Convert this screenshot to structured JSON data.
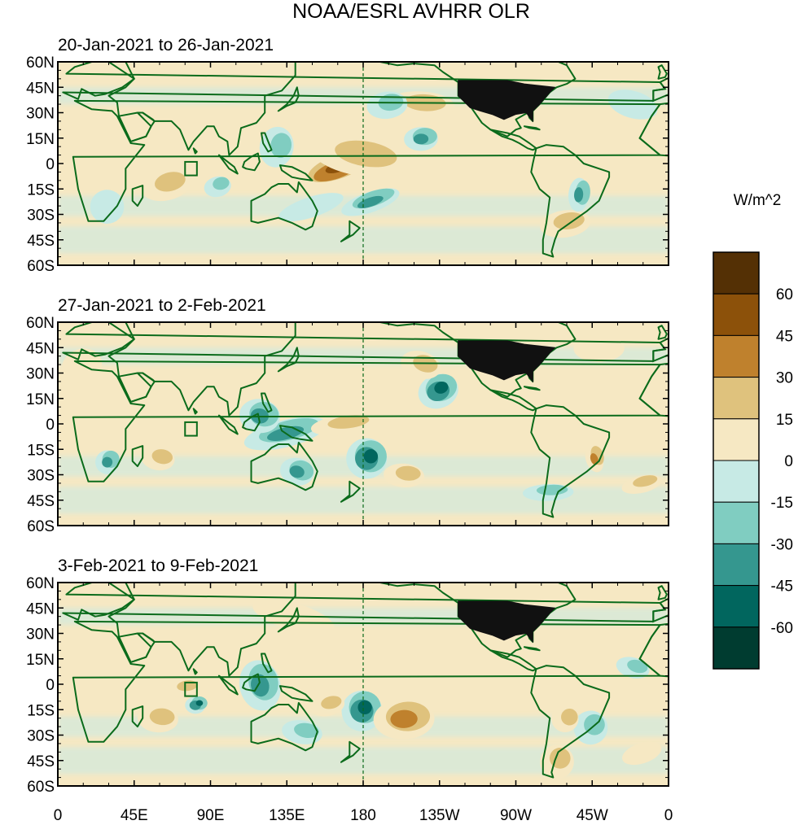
{
  "chart_data": {
    "type": "heatmap",
    "title": "NOAA/ESRL AVHRR OLR",
    "units": "W/m^2",
    "colorbar": {
      "levels": [
        60,
        45,
        30,
        15,
        0,
        -15,
        -30,
        -45,
        -60
      ],
      "colors": [
        "#543005",
        "#8c510a",
        "#bf812d",
        "#dfc27d",
        "#f6e8c3",
        "#c7eae5",
        "#80cdc1",
        "#35978f",
        "#01665e",
        "#003c30"
      ],
      "tick_labels": [
        "60",
        "45",
        "30",
        "15",
        "0",
        "-15",
        "-30",
        "-45",
        "-60"
      ]
    },
    "lat_ticks": [
      "60N",
      "45N",
      "30N",
      "15N",
      "0",
      "15S",
      "30S",
      "45S",
      "60S"
    ],
    "lat_values": [
      60,
      45,
      30,
      15,
      0,
      -15,
      -30,
      -45,
      -60
    ],
    "lon_ticks": [
      "0",
      "45E",
      "90E",
      "135E",
      "180",
      "135W",
      "90W",
      "45W",
      "0"
    ],
    "lon_values": [
      0,
      45,
      90,
      135,
      180,
      225,
      270,
      315,
      360
    ],
    "xlim": [
      0,
      360
    ],
    "ylim": [
      -60,
      60
    ],
    "panels": [
      {
        "title": "20-Jan-2021 to 26-Jan-2021",
        "anomalies": [
          {
            "lon": 165,
            "lat": -3,
            "value": 65,
            "rx": 25,
            "ry": 9
          },
          {
            "lon": 215,
            "lat": 35,
            "value": 35,
            "rx": 20,
            "ry": 8
          },
          {
            "lon": 65,
            "lat": -12,
            "value": 30,
            "rx": 15,
            "ry": 9
          },
          {
            "lon": 180,
            "lat": 5,
            "value": 28,
            "rx": 30,
            "ry": 12
          },
          {
            "lon": 300,
            "lat": -35,
            "value": 25,
            "rx": 15,
            "ry": 8
          },
          {
            "lon": 85,
            "lat": 15,
            "value": 20,
            "rx": 20,
            "ry": 12
          },
          {
            "lon": 215,
            "lat": 15,
            "value": -50,
            "rx": 10,
            "ry": 7
          },
          {
            "lon": 185,
            "lat": -22,
            "value": -50,
            "rx": 18,
            "ry": 6
          },
          {
            "lon": 308,
            "lat": -18,
            "value": -45,
            "rx": 6,
            "ry": 10
          },
          {
            "lon": 95,
            "lat": -13,
            "value": -35,
            "rx": 8,
            "ry": 6
          },
          {
            "lon": 130,
            "lat": 10,
            "value": -30,
            "rx": 10,
            "ry": 12
          },
          {
            "lon": 195,
            "lat": 35,
            "value": -25,
            "rx": 12,
            "ry": 8
          },
          {
            "lon": 340,
            "lat": 35,
            "value": -20,
            "rx": 15,
            "ry": 8
          },
          {
            "lon": 30,
            "lat": -25,
            "value": -20,
            "rx": 10,
            "ry": 10
          },
          {
            "lon": 150,
            "lat": -25,
            "value": -20,
            "rx": 20,
            "ry": 6
          }
        ]
      },
      {
        "title": "27-Jan-2021 to 2-Feb-2021",
        "anomalies": [
          {
            "lon": 225,
            "lat": 20,
            "value": -60,
            "rx": 12,
            "ry": 10
          },
          {
            "lon": 183,
            "lat": -20,
            "value": -60,
            "rx": 12,
            "ry": 12
          },
          {
            "lon": 135,
            "lat": -5,
            "value": -45,
            "rx": 25,
            "ry": 8
          },
          {
            "lon": 120,
            "lat": 5,
            "value": -40,
            "rx": 12,
            "ry": 10
          },
          {
            "lon": 30,
            "lat": -22,
            "value": -50,
            "rx": 7,
            "ry": 7
          },
          {
            "lon": 142,
            "lat": -28,
            "value": -40,
            "rx": 10,
            "ry": 8
          },
          {
            "lon": 290,
            "lat": -40,
            "value": -35,
            "rx": 15,
            "ry": 5
          },
          {
            "lon": 317,
            "lat": -20,
            "value": 40,
            "rx": 5,
            "ry": 8
          },
          {
            "lon": 205,
            "lat": -30,
            "value": 30,
            "rx": 12,
            "ry": 7
          },
          {
            "lon": 345,
            "lat": -35,
            "value": 35,
            "rx": 12,
            "ry": 5
          },
          {
            "lon": 60,
            "lat": -20,
            "value": 30,
            "rx": 10,
            "ry": 7
          },
          {
            "lon": 170,
            "lat": 0,
            "value": 25,
            "rx": 20,
            "ry": 6
          },
          {
            "lon": 215,
            "lat": 35,
            "value": 25,
            "rx": 12,
            "ry": 8
          },
          {
            "lon": 320,
            "lat": 45,
            "value": 20,
            "rx": 15,
            "ry": 8
          },
          {
            "lon": 15,
            "lat": 35,
            "value": 20,
            "rx": 12,
            "ry": 10
          }
        ]
      },
      {
        "title": "3-Feb-2021 to 9-Feb-2021",
        "anomalies": [
          {
            "lon": 180,
            "lat": -15,
            "value": -60,
            "rx": 12,
            "ry": 12
          },
          {
            "lon": 82,
            "lat": -12,
            "value": -55,
            "rx": 6,
            "ry": 5
          },
          {
            "lon": 120,
            "lat": 0,
            "value": -40,
            "rx": 12,
            "ry": 15
          },
          {
            "lon": 145,
            "lat": -28,
            "value": -30,
            "rx": 12,
            "ry": 7
          },
          {
            "lon": 315,
            "lat": -25,
            "value": -30,
            "rx": 10,
            "ry": 10
          },
          {
            "lon": 340,
            "lat": 10,
            "value": -35,
            "rx": 10,
            "ry": 6
          },
          {
            "lon": 205,
            "lat": -20,
            "value": 40,
            "rx": 18,
            "ry": 12
          },
          {
            "lon": 295,
            "lat": -45,
            "value": 35,
            "rx": 10,
            "ry": 10
          },
          {
            "lon": 60,
            "lat": -20,
            "value": 35,
            "rx": 12,
            "ry": 8
          },
          {
            "lon": 160,
            "lat": -12,
            "value": 30,
            "rx": 10,
            "ry": 6
          },
          {
            "lon": 300,
            "lat": -20,
            "value": 30,
            "rx": 8,
            "ry": 8
          },
          {
            "lon": 75,
            "lat": -2,
            "value": 25,
            "rx": 10,
            "ry": 5
          },
          {
            "lon": 140,
            "lat": 40,
            "value": 20,
            "rx": 25,
            "ry": 8
          },
          {
            "lon": 240,
            "lat": 15,
            "value": 15,
            "rx": 20,
            "ry": 10
          },
          {
            "lon": 345,
            "lat": -40,
            "value": 20,
            "rx": 12,
            "ry": 6
          }
        ]
      }
    ]
  }
}
